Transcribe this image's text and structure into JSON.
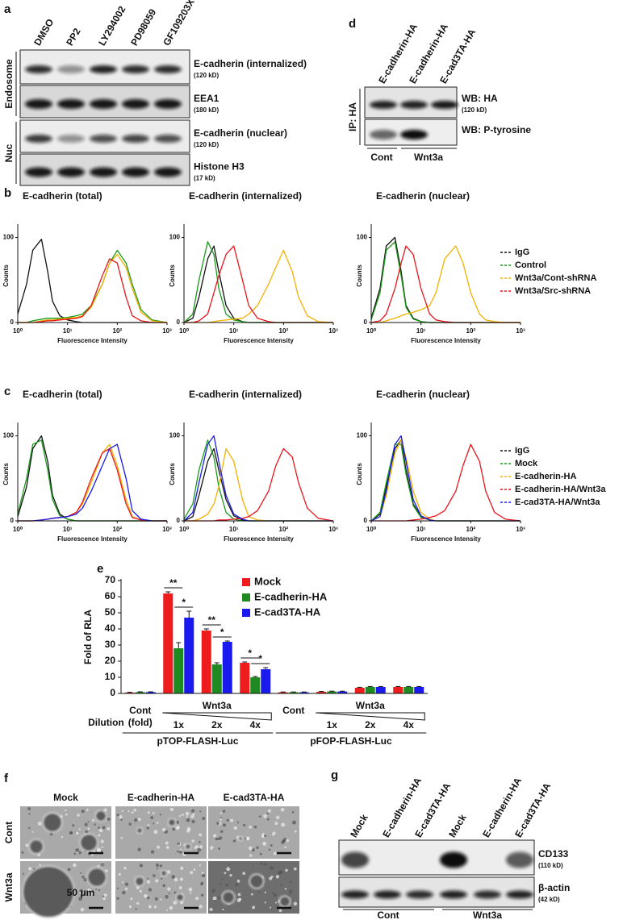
{
  "panels": {
    "a": {
      "label": "a",
      "lanes": [
        "DMSO",
        "PP2",
        "LY294002",
        "PD98059",
        "GF109203X"
      ],
      "blots": [
        {
          "name": "E-cadherin (internalized)",
          "size": "(120 kD)"
        },
        {
          "name": "EEA1",
          "size": "(180 kD)"
        },
        {
          "name": "E-cadherin (nuclear)",
          "size": "(120 kD)"
        },
        {
          "name": "Histone H3",
          "size": "(17 kD)"
        }
      ],
      "fractions": [
        "Endosome",
        "Nuc"
      ]
    },
    "d": {
      "label": "d",
      "lanes": [
        "E-cadherin-HA",
        "E-cadherin-HA",
        "E-cad3TA-HA"
      ],
      "ip": "IP: HA",
      "blots": [
        {
          "name": "WB: HA",
          "size": "(120 kD)"
        },
        {
          "name": "WB: P-tyrosine"
        }
      ],
      "conditions": [
        "Cont",
        "Wnt3a"
      ]
    },
    "f": {
      "label": "f",
      "columns": [
        "Mock",
        "E-cadherin-HA",
        "E-cad3TA-HA"
      ],
      "rows": [
        "Cont",
        "Wnt3a"
      ],
      "scale": "50 μm"
    },
    "g": {
      "label": "g",
      "lanes": [
        "Mock",
        "E-cadherin-HA",
        "E-cad3TA-HA",
        "Mock",
        "E-cadherin-HA",
        "E-cad3TA-HA"
      ],
      "blots": [
        {
          "name": "CD133",
          "size": "(110 kD)"
        },
        {
          "name": "β-actin",
          "size": "(42 kD)"
        }
      ],
      "conditions": [
        "Cont",
        "Wnt3a"
      ]
    }
  },
  "chart_data": [
    {
      "type": "line",
      "label": "b",
      "log_x": true,
      "x": [
        1,
        1.5,
        2,
        3,
        4,
        5,
        7,
        10,
        15,
        20,
        30,
        50,
        70,
        100,
        150,
        200,
        300,
        500,
        1000
      ],
      "xlim": [
        1,
        1000
      ],
      "xticks": [
        {
          "value": 1,
          "label": "10⁰"
        },
        {
          "value": 10,
          "label": "10¹"
        },
        {
          "value": 100,
          "label": "10²"
        },
        {
          "value": 1000,
          "label": "10³"
        }
      ],
      "ylim": [
        0,
        110
      ],
      "yticks": [
        0,
        100
      ],
      "xlabel": "Fluorescence Intensity",
      "ylabel": "Counts",
      "legend": "right",
      "series": [
        {
          "name": "IgG",
          "color": "#111111"
        },
        {
          "name": "Control",
          "color": "#1a9a1a"
        },
        {
          "name": "Wnt3a/Cont-shRNA",
          "color": "#f2b100"
        },
        {
          "name": "Wnt3a/Src-shRNA",
          "color": "#e8141c"
        }
      ],
      "panels": [
        {
          "title": "E-cadherin (total)",
          "values": [
            [
              10,
              45,
              85,
              98,
              60,
              25,
              8,
              3,
              1,
              0,
              0,
              0,
              0,
              0,
              0,
              0,
              0,
              0,
              0
            ],
            [
              0,
              0,
              2,
              4,
              5,
              5,
              5,
              6,
              8,
              10,
              20,
              45,
              70,
              85,
              70,
              45,
              15,
              3,
              0
            ],
            [
              0,
              0,
              0,
              2,
              3,
              3,
              4,
              5,
              6,
              8,
              18,
              45,
              70,
              80,
              65,
              40,
              12,
              2,
              0
            ],
            [
              0,
              0,
              0,
              1,
              2,
              2,
              3,
              4,
              5,
              7,
              20,
              55,
              75,
              70,
              30,
              8,
              2,
              0,
              0
            ]
          ]
        },
        {
          "title": "E-cadherin (internalized)",
          "values": [
            [
              0,
              5,
              30,
              75,
              90,
              60,
              20,
              5,
              1,
              0,
              0,
              0,
              0,
              0,
              0,
              0,
              0,
              0,
              0
            ],
            [
              0,
              10,
              50,
              95,
              80,
              40,
              10,
              3,
              1,
              0,
              0,
              0,
              0,
              0,
              0,
              0,
              0,
              0,
              0
            ],
            [
              0,
              0,
              0,
              0,
              1,
              2,
              3,
              4,
              5,
              10,
              20,
              45,
              65,
              85,
              60,
              30,
              8,
              1,
              0
            ],
            [
              0,
              0,
              2,
              10,
              35,
              55,
              80,
              90,
              50,
              20,
              5,
              1,
              0,
              0,
              0,
              0,
              0,
              0,
              0
            ]
          ]
        },
        {
          "title": "E-cadherin (nuclear)",
          "values": [
            [
              5,
              40,
              90,
              100,
              60,
              20,
              5,
              1,
              0,
              0,
              0,
              0,
              0,
              0,
              0,
              0,
              0,
              0,
              0
            ],
            [
              3,
              35,
              85,
              95,
              55,
              18,
              4,
              1,
              0,
              0,
              0,
              0,
              0,
              0,
              0,
              0,
              0,
              0,
              0
            ],
            [
              0,
              0,
              2,
              5,
              8,
              10,
              12,
              15,
              20,
              35,
              75,
              90,
              70,
              35,
              10,
              3,
              1,
              0,
              0
            ],
            [
              0,
              2,
              10,
              40,
              70,
              90,
              80,
              40,
              10,
              3,
              1,
              0,
              0,
              0,
              0,
              0,
              0,
              0,
              0
            ]
          ]
        }
      ]
    },
    {
      "type": "line",
      "label": "c",
      "log_x": true,
      "x": [
        1,
        1.5,
        2,
        3,
        4,
        5,
        7,
        10,
        15,
        20,
        30,
        50,
        70,
        100,
        150,
        200,
        300,
        500,
        1000
      ],
      "xlim": [
        1,
        1000
      ],
      "xticks": [
        {
          "value": 1,
          "label": "10⁰"
        },
        {
          "value": 10,
          "label": "10¹"
        },
        {
          "value": 100,
          "label": "10²"
        },
        {
          "value": 1000,
          "label": "10³"
        }
      ],
      "ylim": [
        0,
        110
      ],
      "yticks": [
        0,
        100
      ],
      "xlabel": "Fluorescence Intensity",
      "ylabel": "Counts",
      "legend": "right",
      "series": [
        {
          "name": "IgG",
          "color": "#111111"
        },
        {
          "name": "Mock",
          "color": "#1a9a1a"
        },
        {
          "name": "E-cadherin-HA",
          "color": "#f2b100"
        },
        {
          "name": "E-cadherin-HA/Wnt3a",
          "color": "#e8141c"
        },
        {
          "name": "E-cad3TA-HA/Wnt3a",
          "color": "#1a1aee"
        }
      ],
      "panels": [
        {
          "title": "E-cadherin (total)",
          "values": [
            [
              5,
              40,
              85,
              100,
              70,
              30,
              8,
              2,
              0,
              0,
              0,
              0,
              0,
              0,
              0,
              0,
              0,
              0,
              0
            ],
            [
              8,
              50,
              90,
              95,
              60,
              25,
              6,
              2,
              0,
              0,
              0,
              0,
              0,
              0,
              0,
              0,
              0,
              0,
              0
            ],
            [
              0,
              0,
              0,
              1,
              2,
              3,
              4,
              5,
              10,
              20,
              45,
              80,
              90,
              65,
              25,
              5,
              1,
              0,
              0
            ],
            [
              0,
              0,
              0,
              1,
              2,
              3,
              4,
              5,
              10,
              22,
              50,
              80,
              85,
              60,
              20,
              4,
              1,
              0,
              0
            ],
            [
              0,
              0,
              0,
              1,
              2,
              3,
              4,
              5,
              8,
              15,
              35,
              65,
              85,
              90,
              50,
              12,
              2,
              0,
              0
            ]
          ]
        },
        {
          "title": "E-cadherin (internalized)",
          "values": [
            [
              0,
              5,
              30,
              70,
              85,
              60,
              25,
              6,
              1,
              0,
              0,
              0,
              0,
              0,
              0,
              0,
              0,
              0,
              0
            ],
            [
              2,
              20,
              60,
              95,
              75,
              40,
              10,
              2,
              0,
              0,
              0,
              0,
              0,
              0,
              0,
              0,
              0,
              0,
              0
            ],
            [
              0,
              0,
              2,
              8,
              20,
              40,
              85,
              70,
              25,
              5,
              1,
              0,
              0,
              0,
              0,
              0,
              0,
              0,
              0
            ],
            [
              0,
              0,
              0,
              0,
              0,
              1,
              1,
              2,
              3,
              5,
              12,
              35,
              65,
              85,
              75,
              45,
              15,
              3,
              0
            ],
            [
              0,
              10,
              45,
              90,
              100,
              70,
              30,
              8,
              2,
              0,
              0,
              0,
              0,
              0,
              0,
              0,
              0,
              0,
              0
            ]
          ]
        },
        {
          "title": "E-cadherin (nuclear)",
          "values": [
            [
              0,
              8,
              40,
              85,
              95,
              60,
              20,
              5,
              1,
              0,
              0,
              0,
              0,
              0,
              0,
              0,
              0,
              0,
              0
            ],
            [
              0,
              10,
              45,
              90,
              90,
              55,
              18,
              4,
              1,
              0,
              0,
              0,
              0,
              0,
              0,
              0,
              0,
              0,
              0
            ],
            [
              0,
              5,
              30,
              80,
              95,
              75,
              35,
              10,
              2,
              0,
              0,
              0,
              0,
              0,
              0,
              0,
              0,
              0,
              0
            ],
            [
              0,
              0,
              0,
              0,
              0,
              0,
              1,
              2,
              4,
              6,
              12,
              35,
              65,
              90,
              70,
              35,
              10,
              2,
              0
            ],
            [
              0,
              5,
              35,
              90,
              100,
              70,
              25,
              6,
              1,
              0,
              0,
              0,
              0,
              0,
              0,
              0,
              0,
              0,
              0
            ]
          ]
        }
      ]
    },
    {
      "type": "bar",
      "label": "e",
      "ylabel": "Fold of RLA",
      "ylim": [
        0,
        70
      ],
      "yticks": [
        0,
        10,
        20,
        30,
        40,
        50,
        60,
        70
      ],
      "categories": [
        "Cont",
        "1x",
        "2x",
        "4x",
        "Cont",
        "1x",
        "2x",
        "4x"
      ],
      "dilution_label": "Dilution",
      "dilution_unit": "(fold)",
      "groups": [
        {
          "label": "pTOP-FLASH-Luc",
          "treatment": "Wnt3a"
        },
        {
          "label": "pFOP-FLASH-Luc",
          "treatment": "Wnt3a"
        }
      ],
      "series": [
        {
          "name": "Mock",
          "color": "#ee1c1c",
          "values": [
            0.5,
            62,
            39,
            19,
            0.7,
            1,
            3.5,
            4
          ],
          "errors": [
            0.2,
            1,
            1,
            0.5,
            0.2,
            0.2,
            0.3,
            0.3
          ]
        },
        {
          "name": "E-cadherin-HA",
          "color": "#1f8a1f",
          "values": [
            0.8,
            28,
            18,
            10,
            0.7,
            1.2,
            4,
            4
          ],
          "errors": [
            0.2,
            3.5,
            1,
            0.5,
            0.2,
            0.2,
            0.3,
            0.3
          ]
        },
        {
          "name": "E-cad3TA-HA",
          "color": "#1a1aee",
          "values": [
            0.8,
            47,
            32,
            15,
            0.7,
            1.2,
            4,
            4
          ],
          "errors": [
            0.2,
            4,
            0.5,
            1,
            0.2,
            0.2,
            0.3,
            0.3
          ]
        }
      ],
      "significance": [
        [
          null,
          "**",
          "**",
          "*",
          null,
          null,
          null,
          null
        ],
        [
          null,
          "*",
          "*",
          "*",
          null,
          null,
          null,
          null
        ]
      ],
      "legend": "top"
    }
  ]
}
